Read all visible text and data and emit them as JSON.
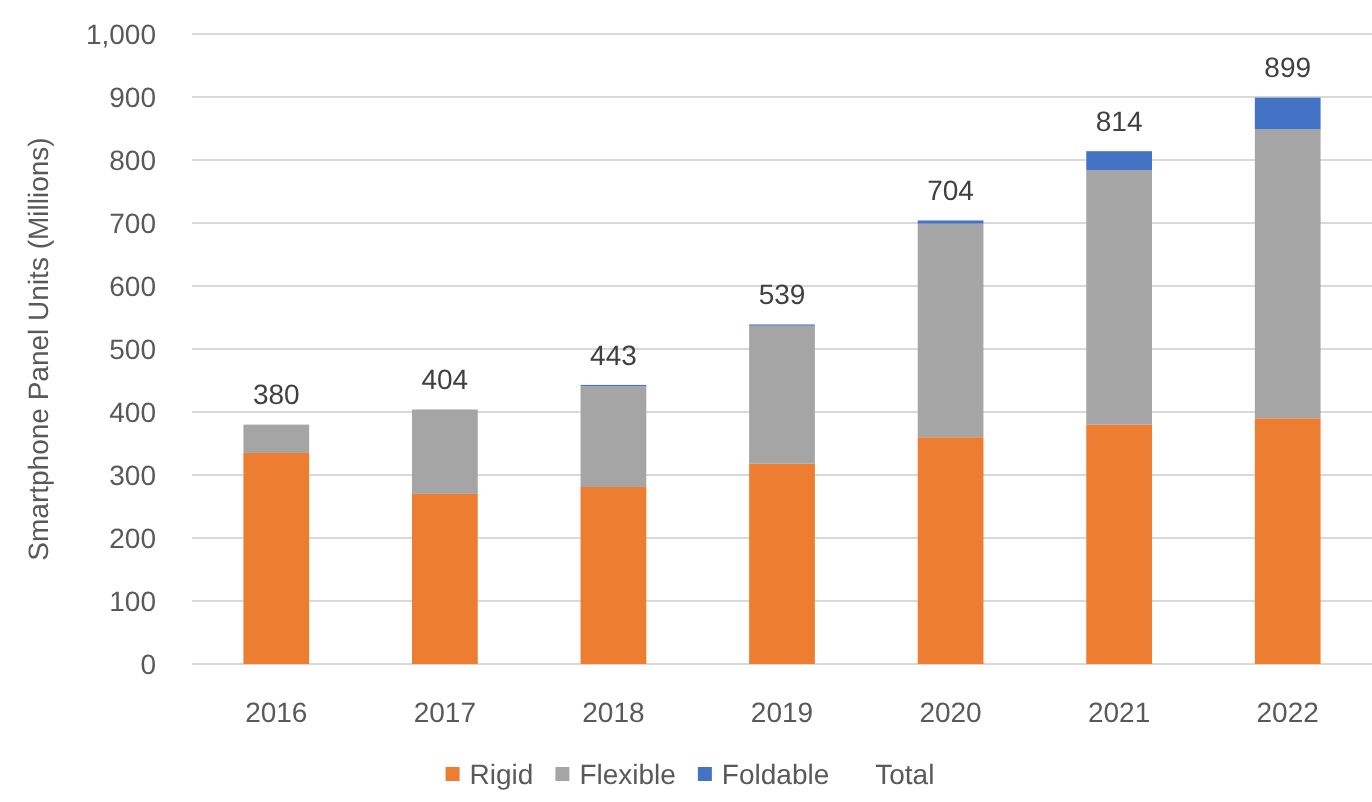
{
  "chart_data": {
    "type": "bar",
    "stacked": true,
    "ylabel": "Smartphone Panel Units (Millions)",
    "categories": [
      "2016",
      "2017",
      "2018",
      "2019",
      "2020",
      "2021",
      "2022"
    ],
    "series": [
      {
        "name": "Rigid",
        "color": "#ed7d31",
        "values": [
          335,
          270,
          281,
          318,
          360,
          380,
          390
        ]
      },
      {
        "name": "Flexible",
        "color": "#a5a5a5",
        "values": [
          45,
          134,
          160,
          219,
          339,
          404,
          459
        ]
      },
      {
        "name": "Foldable",
        "color": "#4472c4",
        "values": [
          0,
          0,
          2,
          2,
          5,
          30,
          50
        ]
      }
    ],
    "totals": [
      "380",
      "404",
      "443",
      "539",
      "704",
      "814",
      "899"
    ],
    "ylim": [
      0,
      1000
    ],
    "yticks": [
      0,
      100,
      200,
      300,
      400,
      500,
      600,
      700,
      800,
      900,
      {
        "value": 1000,
        "label": "1,000"
      }
    ],
    "grid": "y",
    "legend": "bottom",
    "annotations": [
      "Total"
    ]
  }
}
